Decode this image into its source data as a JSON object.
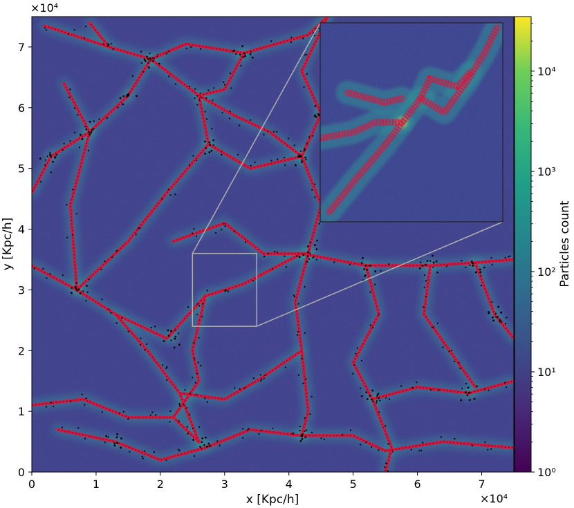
{
  "chart_data": {
    "type": "heatmap",
    "title": "",
    "xlabel": "x [Kpc/h]",
    "ylabel": "y [Kpc/h]",
    "x_offset_text": "×10⁴",
    "y_offset_text": "×10⁴",
    "xlim": [
      0,
      7.5
    ],
    "ylim": [
      0,
      7.5
    ],
    "x_ticks": [
      "0",
      "1",
      "2",
      "3",
      "4",
      "5",
      "6",
      "7"
    ],
    "y_ticks": [
      "0",
      "1",
      "2",
      "3",
      "4",
      "5",
      "6",
      "7"
    ],
    "x_tick_values": [
      0,
      1,
      2,
      3,
      4,
      5,
      6,
      7
    ],
    "y_tick_values": [
      0,
      1,
      2,
      3,
      4,
      5,
      6,
      7
    ],
    "colorbar": {
      "label": "Particles count",
      "scale": "log",
      "range": [
        1,
        35000
      ],
      "tick_values": [
        1,
        10,
        100,
        1000,
        10000
      ],
      "ticks": [
        "10⁰",
        "10¹",
        "10²",
        "10³",
        "10⁴"
      ],
      "colormap": "viridis"
    },
    "zoom_box": {
      "x": [
        2.5,
        3.5
      ],
      "y": [
        2.4,
        3.6
      ]
    },
    "inset": "zoomed view of boxed region",
    "overlays": {
      "filament_color": "#dc143c",
      "halo_color": "#000000",
      "background_color": "#3b3a86"
    },
    "filaments": [
      [
        [
          0.2,
          7.35
        ],
        [
          1.2,
          7.0
        ],
        [
          1.85,
          6.8
        ],
        [
          2.4,
          7.05
        ],
        [
          3.3,
          6.9
        ],
        [
          4.3,
          7.2
        ],
        [
          4.6,
          7.5
        ]
      ],
      [
        [
          1.85,
          6.8
        ],
        [
          1.5,
          6.2
        ],
        [
          0.9,
          5.6
        ],
        [
          0.3,
          5.2
        ],
        [
          0.0,
          4.6
        ]
      ],
      [
        [
          1.85,
          6.8
        ],
        [
          2.6,
          6.2
        ],
        [
          2.75,
          5.4
        ],
        [
          2.1,
          4.6
        ],
        [
          1.5,
          3.8
        ],
        [
          0.7,
          3.0
        ]
      ],
      [
        [
          0.0,
          3.4
        ],
        [
          0.7,
          3.0
        ],
        [
          1.3,
          2.6
        ],
        [
          2.1,
          2.2
        ],
        [
          2.7,
          2.9
        ],
        [
          3.3,
          3.1
        ],
        [
          4.2,
          3.6
        ],
        [
          5.2,
          3.4
        ],
        [
          6.2,
          3.4
        ],
        [
          6.9,
          3.45
        ],
        [
          7.5,
          3.5
        ]
      ],
      [
        [
          2.2,
          3.8
        ],
        [
          3.0,
          4.1
        ],
        [
          3.6,
          3.6
        ],
        [
          4.3,
          3.6
        ]
      ],
      [
        [
          4.3,
          3.6
        ],
        [
          4.5,
          4.4
        ],
        [
          4.2,
          5.2
        ],
        [
          4.5,
          5.9
        ],
        [
          4.2,
          6.6
        ],
        [
          4.6,
          7.5
        ]
      ],
      [
        [
          4.2,
          5.2
        ],
        [
          3.7,
          5.6
        ],
        [
          3.1,
          5.9
        ],
        [
          2.6,
          6.2
        ]
      ],
      [
        [
          4.3,
          3.6
        ],
        [
          4.1,
          2.8
        ],
        [
          4.2,
          2.0
        ],
        [
          4.3,
          1.0
        ],
        [
          4.2,
          0.6
        ]
      ],
      [
        [
          4.2,
          0.6
        ],
        [
          3.4,
          0.7
        ],
        [
          2.7,
          0.4
        ],
        [
          2.0,
          0.2
        ],
        [
          1.3,
          0.5
        ],
        [
          0.4,
          0.7
        ]
      ],
      [
        [
          0.0,
          1.1
        ],
        [
          0.8,
          1.2
        ],
        [
          1.5,
          0.9
        ],
        [
          2.2,
          0.9
        ],
        [
          2.6,
          0.5
        ]
      ],
      [
        [
          2.6,
          0.5
        ],
        [
          2.3,
          1.3
        ],
        [
          1.8,
          2.0
        ],
        [
          1.3,
          2.6
        ]
      ],
      [
        [
          5.2,
          3.4
        ],
        [
          5.4,
          2.6
        ],
        [
          5.0,
          1.8
        ],
        [
          5.3,
          1.2
        ],
        [
          5.6,
          0.4
        ],
        [
          5.5,
          0.0
        ]
      ],
      [
        [
          5.3,
          1.2
        ],
        [
          6.0,
          1.4
        ],
        [
          6.8,
          1.3
        ],
        [
          7.5,
          1.5
        ]
      ],
      [
        [
          6.2,
          3.4
        ],
        [
          6.1,
          2.6
        ],
        [
          6.5,
          2.0
        ],
        [
          6.9,
          1.4
        ]
      ],
      [
        [
          6.9,
          3.45
        ],
        [
          7.2,
          2.6
        ],
        [
          7.5,
          2.2
        ]
      ],
      [
        [
          4.2,
          0.6
        ],
        [
          5.0,
          0.6
        ],
        [
          5.5,
          0.35
        ],
        [
          6.4,
          0.5
        ],
        [
          7.5,
          0.4
        ]
      ],
      [
        [
          0.5,
          6.4
        ],
        [
          0.9,
          5.6
        ],
        [
          0.6,
          4.4
        ],
        [
          0.7,
          3.0
        ]
      ],
      [
        [
          2.75,
          5.4
        ],
        [
          3.4,
          5.0
        ],
        [
          4.2,
          5.2
        ]
      ],
      [
        [
          3.3,
          6.9
        ],
        [
          3.0,
          6.3
        ],
        [
          2.6,
          6.2
        ]
      ],
      [
        [
          1.2,
          7.0
        ],
        [
          0.9,
          7.4
        ]
      ],
      [
        [
          2.7,
          2.9
        ],
        [
          2.5,
          2.0
        ],
        [
          2.6,
          1.5
        ],
        [
          2.2,
          0.9
        ]
      ],
      [
        [
          4.2,
          2.0
        ],
        [
          3.5,
          1.5
        ],
        [
          3.0,
          1.2
        ],
        [
          2.3,
          1.3
        ]
      ]
    ],
    "halos": [
      [
        1.85,
        6.8
      ],
      [
        0.7,
        3.0
      ],
      [
        6.9,
        3.45
      ],
      [
        2.7,
        0.45
      ],
      [
        4.3,
        3.6
      ],
      [
        5.2,
        3.4
      ],
      [
        2.2,
        2.2
      ],
      [
        4.2,
        0.6
      ],
      [
        1.5,
        6.2
      ],
      [
        3.3,
        6.9
      ],
      [
        6.2,
        3.4
      ],
      [
        5.3,
        1.2
      ],
      [
        0.3,
        5.2
      ],
      [
        2.75,
        5.4
      ],
      [
        4.5,
        5.9
      ],
      [
        6.8,
        1.3
      ],
      [
        1.3,
        0.5
      ],
      [
        7.2,
        2.6
      ],
      [
        0.9,
        5.6
      ],
      [
        4.2,
        5.2
      ]
    ],
    "inset_filaments": [
      [
        [
          0.05,
          0.05
        ],
        [
          0.2,
          0.22
        ],
        [
          0.35,
          0.38
        ],
        [
          0.45,
          0.5
        ],
        [
          0.55,
          0.62
        ],
        [
          0.68,
          0.55
        ],
        [
          0.8,
          0.7
        ],
        [
          0.9,
          0.85
        ],
        [
          0.97,
          0.98
        ]
      ],
      [
        [
          0.0,
          0.42
        ],
        [
          0.18,
          0.45
        ],
        [
          0.3,
          0.5
        ],
        [
          0.45,
          0.5
        ]
      ],
      [
        [
          0.15,
          0.65
        ],
        [
          0.35,
          0.6
        ],
        [
          0.45,
          0.62
        ]
      ],
      [
        [
          0.55,
          0.62
        ],
        [
          0.6,
          0.72
        ],
        [
          0.75,
          0.68
        ],
        [
          0.82,
          0.75
        ]
      ]
    ]
  }
}
